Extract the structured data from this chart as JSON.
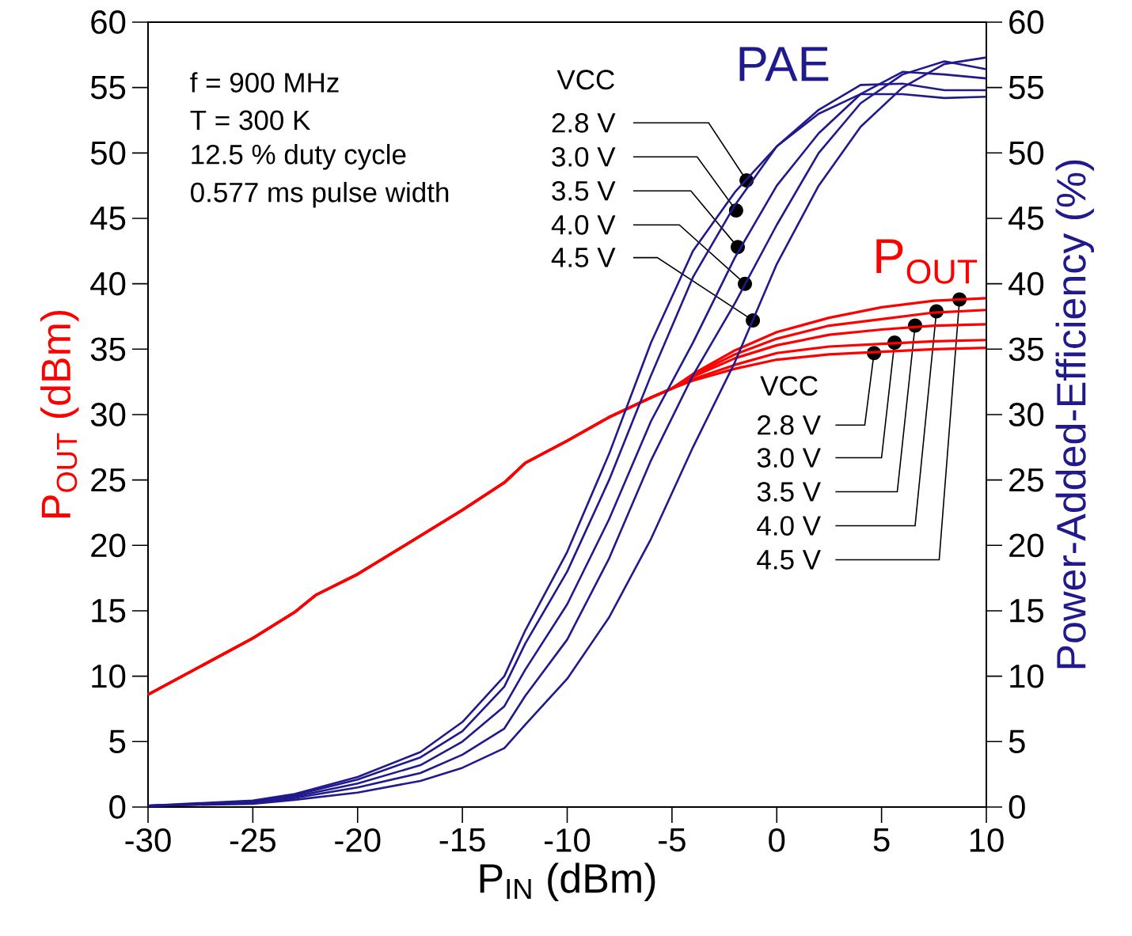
{
  "chart_data": {
    "type": "line",
    "xlabel": "P$_{IN}$ (dBm)",
    "ylabel": "P$_{OUT}$ (dBm)",
    "y2label": "Power-Added-Efficiency (%)",
    "xlim": [
      -30,
      10
    ],
    "xticks": [
      -30,
      -25,
      -20,
      -15,
      -10,
      -5,
      0,
      5,
      10
    ],
    "ylim": [
      0,
      60
    ],
    "yticks": [
      0,
      5,
      10,
      15,
      20,
      25,
      30,
      35,
      40,
      45,
      50,
      55,
      60
    ],
    "y2lim": [
      0,
      60
    ],
    "y2ticks": [
      0,
      5,
      10,
      15,
      20,
      25,
      30,
      35,
      40,
      45,
      50,
      55,
      60
    ],
    "series": [
      {
        "color": "#ff0000",
        "x": [
          -30,
          -25,
          -23,
          -22,
          -20,
          -15,
          -13,
          -12,
          -10,
          -8,
          -6,
          -5,
          -4,
          -2,
          0,
          2.5,
          5,
          7.5,
          10
        ],
        "values": [
          8.6,
          12.9,
          14.9,
          16.2,
          17.8,
          22.7,
          24.8,
          26.3,
          28.0,
          29.8,
          31.3,
          32.0,
          32.6,
          33.5,
          34.2,
          34.6,
          34.8,
          35.0,
          35.1
        ]
      },
      {
        "color": "#ff0000",
        "x": [
          -30,
          -25,
          -23,
          -22,
          -20,
          -15,
          -13,
          -12,
          -10,
          -8,
          -6,
          -5,
          -4,
          -2,
          0,
          2.5,
          5,
          7.5,
          10
        ],
        "values": [
          8.6,
          12.9,
          14.9,
          16.2,
          17.8,
          22.7,
          24.8,
          26.3,
          28.0,
          29.8,
          31.3,
          32.0,
          32.7,
          33.8,
          34.7,
          35.2,
          35.4,
          35.6,
          35.7
        ]
      },
      {
        "color": "#ff0000",
        "x": [
          -30,
          -25,
          -23,
          -22,
          -20,
          -15,
          -13,
          -12,
          -10,
          -8,
          -6,
          -5,
          -4,
          -2,
          0,
          2.5,
          5,
          7.5,
          10
        ],
        "values": [
          8.6,
          12.9,
          14.9,
          16.2,
          17.8,
          22.7,
          24.8,
          26.3,
          28.0,
          29.8,
          31.3,
          32.0,
          32.9,
          34.3,
          35.3,
          36.1,
          36.5,
          36.8,
          36.9
        ]
      },
      {
        "color": "#ff0000",
        "x": [
          -30,
          -25,
          -23,
          -22,
          -20,
          -15,
          -13,
          -12,
          -10,
          -8,
          -6,
          -5,
          -4,
          -2,
          0,
          2.5,
          5,
          7.5,
          10
        ],
        "values": [
          8.6,
          12.9,
          14.9,
          16.2,
          17.8,
          22.7,
          24.8,
          26.3,
          28.0,
          29.8,
          31.3,
          32.0,
          33.0,
          34.6,
          35.8,
          36.8,
          37.3,
          37.8,
          38.0
        ]
      },
      {
        "color": "#ff0000",
        "x": [
          -30,
          -25,
          -23,
          -22,
          -20,
          -15,
          -13,
          -12,
          -10,
          -8,
          -6,
          -5,
          -4,
          -2,
          0,
          2.5,
          5,
          7.5,
          10
        ],
        "values": [
          8.6,
          12.9,
          14.9,
          16.2,
          17.8,
          22.7,
          24.8,
          26.3,
          28.0,
          29.8,
          31.3,
          32.0,
          33.1,
          34.9,
          36.3,
          37.4,
          38.2,
          38.7,
          38.9
        ]
      },
      {
        "color": "#201a8c",
        "axis": "y2",
        "x": [
          -30,
          -25,
          -23,
          -20,
          -17,
          -15,
          -13,
          -12,
          -10,
          -8,
          -6,
          -4,
          -2,
          0,
          2,
          4,
          6,
          8,
          10
        ],
        "values": [
          0.1,
          0.5,
          1.0,
          2.3,
          4.2,
          6.5,
          10.0,
          13.5,
          19.5,
          27,
          35.5,
          42.5,
          47,
          50.5,
          53,
          54.5,
          54.5,
          54.2,
          54.3
        ]
      },
      {
        "color": "#201a8c",
        "axis": "y2",
        "x": [
          -30,
          -25,
          -23,
          -20,
          -17,
          -15,
          -13,
          -12,
          -10,
          -8,
          -6,
          -4,
          -2,
          0,
          2,
          4,
          6,
          8,
          10
        ],
        "values": [
          0.1,
          0.4,
          0.9,
          2.1,
          3.8,
          5.8,
          9.2,
          12.5,
          18,
          25,
          33,
          40.5,
          46,
          50.5,
          53.3,
          55.2,
          55.3,
          54.8,
          54.8
        ]
      },
      {
        "color": "#201a8c",
        "axis": "y2",
        "x": [
          -30,
          -25,
          -23,
          -20,
          -17,
          -15,
          -13,
          -12,
          -10,
          -8,
          -6,
          -4,
          -2,
          0,
          2,
          4,
          6,
          8,
          10
        ],
        "values": [
          0.1,
          0.35,
          0.8,
          1.8,
          3.2,
          5,
          7.7,
          10.5,
          15.5,
          22,
          29.5,
          35.5,
          42,
          47.5,
          51.5,
          54.5,
          56.2,
          56.0,
          55.7
        ]
      },
      {
        "color": "#201a8c",
        "axis": "y2",
        "x": [
          -30,
          -25,
          -23,
          -20,
          -17,
          -15,
          -13,
          -12,
          -10,
          -8,
          -6,
          -4,
          -2,
          0,
          2,
          4,
          6,
          8,
          10
        ],
        "values": [
          0.1,
          0.3,
          0.7,
          1.5,
          2.6,
          4,
          6.0,
          8.5,
          12.8,
          19,
          26.5,
          33,
          38.5,
          44.5,
          50,
          53.8,
          56,
          57.0,
          56.4
        ]
      },
      {
        "color": "#201a8c",
        "axis": "y2",
        "x": [
          -30,
          -25,
          -23,
          -20,
          -17,
          -15,
          -13,
          -12,
          -10,
          -8,
          -6,
          -4,
          -2,
          0,
          2,
          4,
          6,
          8,
          10
        ],
        "values": [
          0.1,
          0.25,
          0.55,
          1.1,
          2,
          3,
          4.5,
          6.3,
          9.8,
          14.5,
          20.5,
          27.5,
          34,
          41.5,
          47.5,
          52,
          55,
          56.8,
          57.3
        ]
      }
    ],
    "annotations": [
      "f = 900 MHz",
      "T = 300 K",
      "12.5 % duty cycle",
      "0.577 ms pulse width",
      "VCC",
      {
        "text": "2.8 V",
        "x": -1.44,
        "y": 47.9
      },
      {
        "text": "3.0 V",
        "x": -1.94,
        "y": 45.6
      },
      {
        "text": "3.5 V",
        "x": -1.86,
        "y": 42.8
      },
      {
        "text": "4.0 V",
        "x": -1.52,
        "y": 40.0
      },
      {
        "text": "4.5 V",
        "x": -1.14,
        "y": 37.2
      },
      "PAE",
      "P$_{OUT}$",
      "VCC",
      {
        "text": "2.8 V",
        "x": 4.64,
        "y": 34.7
      },
      {
        "text": "3.0 V",
        "x": 5.62,
        "y": 35.5
      },
      {
        "text": "3.5 V",
        "x": 6.6,
        "y": 36.8
      },
      {
        "text": "4.0 V",
        "x": 7.62,
        "y": 37.9
      },
      {
        "text": "4.5 V",
        "x": 8.72,
        "y": 38.8
      }
    ]
  }
}
